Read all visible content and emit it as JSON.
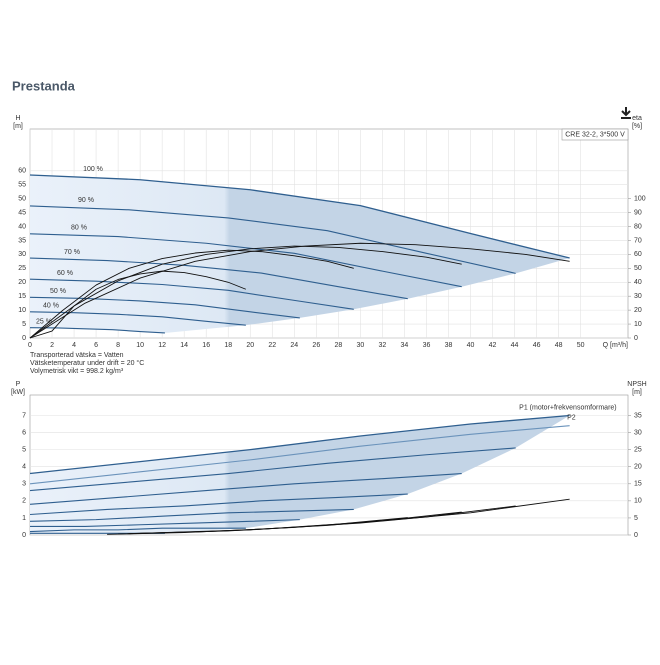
{
  "header": {
    "title": "Prestanda"
  },
  "chart_data": [
    {
      "type": "line",
      "legend": "CRE 32-2, 3*500 V",
      "y_label": "H",
      "y_unit": "[m]",
      "y2_label": "eta",
      "y2_unit": "[%]",
      "x_label": "Q [m³/h]",
      "notes": [
        "Transporterad vätska = Vatten",
        "Vätsketemperatur under drift = 20 °C",
        "Volymetrisk vikt = 998.2 kg/m³"
      ],
      "xlim": [
        0,
        54.3
      ],
      "xticks": [
        0,
        2,
        4,
        6,
        8,
        10,
        12,
        14,
        16,
        18,
        20,
        22,
        24,
        26,
        28,
        30,
        32,
        34,
        36,
        38,
        40,
        42,
        44,
        46,
        48,
        50
      ],
      "ylim": [
        0,
        75
      ],
      "yticks": [
        0,
        5,
        10,
        15,
        20,
        25,
        30,
        35,
        40,
        45,
        50,
        55,
        60
      ],
      "y2lim": [
        0,
        150
      ],
      "y2ticks": [
        0,
        10,
        20,
        30,
        40,
        50,
        60,
        70,
        80,
        90,
        100
      ],
      "grid": true,
      "shaded": "#c3d4e6",
      "series": [
        {
          "name": "100 %",
          "color": "#2f5f8f",
          "x": [
            0,
            10,
            20,
            30,
            40,
            49
          ],
          "values": [
            58.5,
            56.8,
            53.2,
            47.5,
            37.5,
            28.7
          ]
        },
        {
          "name": "90 %",
          "color": "#2f5f8f",
          "x": [
            0,
            9,
            18,
            27,
            36,
            44.1
          ],
          "values": [
            47.4,
            46.0,
            43.1,
            38.5,
            30.4,
            23.2
          ]
        },
        {
          "name": "80 %",
          "color": "#2f5f8f",
          "x": [
            0,
            8,
            16,
            24,
            32,
            39.2
          ],
          "values": [
            37.4,
            36.4,
            34.0,
            30.4,
            24.0,
            18.4
          ]
        },
        {
          "name": "70 %",
          "color": "#2f5f8f",
          "x": [
            0,
            7,
            14,
            21,
            28,
            34.3
          ],
          "values": [
            28.7,
            27.8,
            26.1,
            23.3,
            18.4,
            14.1
          ]
        },
        {
          "name": "60 %",
          "color": "#2f5f8f",
          "x": [
            0,
            6,
            12,
            18,
            24,
            29.4
          ],
          "values": [
            21.1,
            20.4,
            19.2,
            17.1,
            13.5,
            10.3
          ]
        },
        {
          "name": "50 %",
          "color": "#2f5f8f",
          "x": [
            0,
            5,
            10,
            15,
            20,
            24.5
          ],
          "values": [
            14.6,
            14.2,
            13.3,
            11.9,
            9.4,
            7.2
          ]
        },
        {
          "name": "40 %",
          "color": "#2f5f8f",
          "x": [
            0,
            4,
            8,
            12,
            16,
            19.6
          ],
          "values": [
            9.4,
            9.1,
            8.5,
            7.6,
            6.0,
            4.6
          ]
        },
        {
          "name": "25 %",
          "color": "#2f5f8f",
          "x": [
            0,
            2.5,
            5,
            7.5,
            10,
            12.25
          ],
          "values": [
            3.7,
            3.6,
            3.3,
            3.0,
            2.3,
            1.8
          ]
        },
        {
          "axis": "y2",
          "color": "#111111",
          "x": [
            0,
            5,
            10,
            15,
            20,
            25,
            30,
            35,
            40,
            45,
            49
          ],
          "values": [
            0,
            25,
            43,
            55,
            62,
            66,
            68,
            67,
            64,
            60,
            55
          ]
        },
        {
          "axis": "y2",
          "color": "#111111",
          "x": [
            0,
            4,
            8,
            12,
            16,
            20,
            24,
            28,
            32,
            36,
            39.2
          ],
          "values": [
            0,
            23,
            41,
            53,
            60,
            64,
            66,
            65,
            62,
            58,
            53
          ]
        },
        {
          "axis": "y2",
          "color": "#111111",
          "x": [
            0,
            3,
            6,
            9,
            12,
            15,
            18,
            21,
            24,
            27,
            29.4
          ],
          "values": [
            0,
            20,
            38,
            50,
            57,
            61,
            63,
            62,
            59,
            55,
            50
          ]
        },
        {
          "axis": "y2",
          "color": "#111111",
          "x": [
            0,
            2,
            4,
            6,
            8,
            10,
            12,
            14,
            16,
            18,
            19.6
          ],
          "values": [
            0,
            5,
            23,
            35,
            42,
            46,
            48,
            47,
            44,
            40,
            35
          ]
        }
      ]
    },
    {
      "type": "line",
      "y_label": "P",
      "y_unit": "[kW]",
      "y2_label": "NPSH",
      "y2_unit": "[m]",
      "xlim": [
        0,
        54.3
      ],
      "ylim": [
        0,
        8.2
      ],
      "yticks": [
        0,
        1,
        2,
        3,
        4,
        5,
        6,
        7
      ],
      "y2lim": [
        0,
        41
      ],
      "y2ticks": [
        0,
        5,
        10,
        15,
        20,
        25,
        30,
        35
      ],
      "grid": true,
      "shaded": "#c3d4e6",
      "series": [
        {
          "name": "P1 (motor+frekvensomformare)",
          "color": "#2f5f8f",
          "x": [
            0,
            10,
            20,
            30,
            40,
            49
          ],
          "values": [
            3.6,
            4.3,
            5.0,
            5.8,
            6.5,
            7.0
          ]
        },
        {
          "color": "#2f5f8f",
          "x": [
            0,
            9,
            18,
            27,
            36,
            44.1
          ],
          "values": [
            2.6,
            3.1,
            3.6,
            4.2,
            4.7,
            5.1
          ]
        },
        {
          "color": "#2f5f8f",
          "x": [
            0,
            8,
            16,
            24,
            32,
            39.2
          ],
          "values": [
            1.8,
            2.2,
            2.6,
            3.0,
            3.3,
            3.6
          ]
        },
        {
          "color": "#2f5f8f",
          "x": [
            0,
            7,
            14,
            21,
            28,
            34.3
          ],
          "values": [
            1.2,
            1.5,
            1.7,
            2.0,
            2.2,
            2.4
          ]
        },
        {
          "color": "#2f5f8f",
          "x": [
            0,
            6,
            12,
            18,
            24,
            29.4
          ],
          "values": [
            0.8,
            0.9,
            1.1,
            1.3,
            1.4,
            1.5
          ]
        },
        {
          "color": "#2f5f8f",
          "x": [
            0,
            5,
            10,
            15,
            20,
            24.5
          ],
          "values": [
            0.5,
            0.5,
            0.6,
            0.7,
            0.8,
            0.9
          ]
        },
        {
          "color": "#2f5f8f",
          "x": [
            0,
            4,
            8,
            12,
            16,
            19.6
          ],
          "values": [
            0.2,
            0.3,
            0.3,
            0.4,
            0.4,
            0.4
          ]
        },
        {
          "color": "#2f5f8f",
          "x": [
            0,
            2.5,
            5,
            7.5,
            10,
            12.25
          ],
          "values": [
            0.1,
            0.1,
            0.1,
            0.1,
            0.1,
            0.1
          ]
        },
        {
          "name": "P2",
          "color": "#6b93bb",
          "x": [
            0,
            10,
            20,
            30,
            40,
            49
          ],
          "values": [
            3.0,
            3.7,
            4.4,
            5.2,
            5.9,
            6.4
          ]
        },
        {
          "axis": "y2",
          "color": "#111111",
          "x": [
            10,
            20,
            30,
            40,
            49
          ],
          "values": [
            0.5,
            1.5,
            3.5,
            6.5,
            10.5
          ]
        },
        {
          "axis": "y2",
          "color": "#111111",
          "x": [
            9,
            18,
            27,
            36,
            44.1
          ],
          "values": [
            0.4,
            1.2,
            2.8,
            5.3,
            8.5
          ]
        },
        {
          "axis": "y2",
          "color": "#111111",
          "x": [
            8,
            16,
            24,
            32,
            39.2
          ],
          "values": [
            0.3,
            1.0,
            2.2,
            4.2,
            6.7
          ]
        },
        {
          "axis": "y2",
          "color": "#111111",
          "x": [
            7,
            14,
            21,
            28,
            34.3
          ],
          "values": [
            0.2,
            0.7,
            1.7,
            3.2,
            5.1
          ]
        }
      ]
    }
  ]
}
